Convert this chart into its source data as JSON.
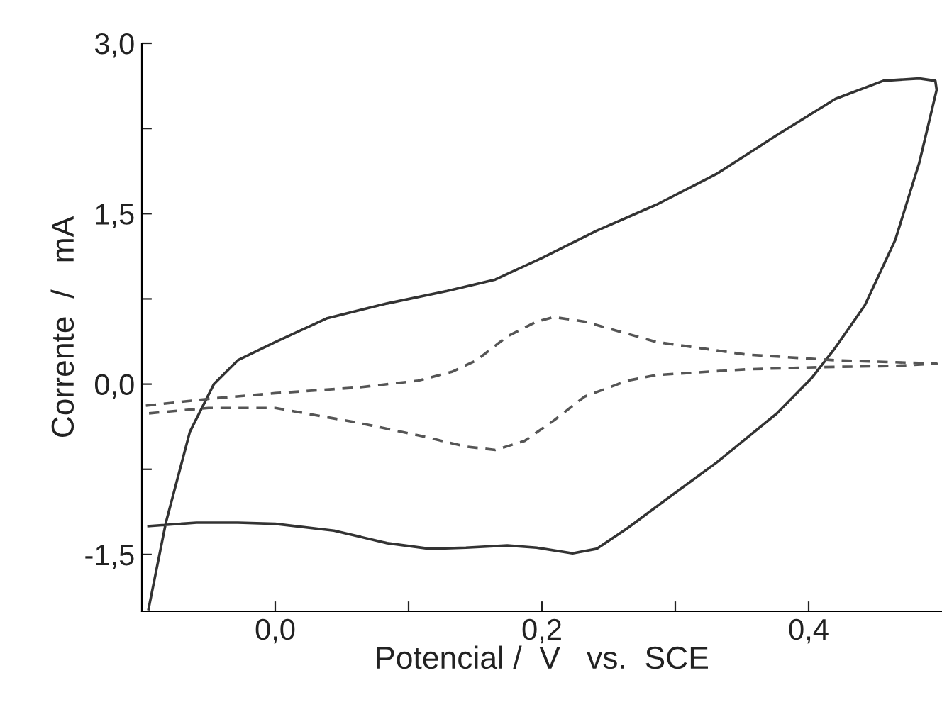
{
  "chart_data": {
    "type": "line",
    "xlabel": "Potencial /  V   vs.  SCE",
    "ylabel": "Corrente  /   mA",
    "xlim": [
      -0.1,
      0.5
    ],
    "ylim": [
      -2.0,
      3.0
    ],
    "xticks": [
      {
        "value": 0.0,
        "label": "0,0"
      },
      {
        "value": 0.1,
        "label": null
      },
      {
        "value": 0.2,
        "label": "0,2"
      },
      {
        "value": 0.3,
        "label": null
      },
      {
        "value": 0.4,
        "label": "0,4"
      }
    ],
    "yticks": [
      {
        "value": -1.5,
        "label": "-1,5"
      },
      {
        "value": -0.75,
        "label": null
      },
      {
        "value": 0.0,
        "label": "0,0"
      },
      {
        "value": 0.75,
        "label": null
      },
      {
        "value": 1.5,
        "label": "1,5"
      },
      {
        "value": 2.25,
        "label": null
      },
      {
        "value": 3.0,
        "label": "3,0"
      }
    ],
    "grid": false,
    "legend": false,
    "series": [
      {
        "color": "#333333",
        "line_style": "solid",
        "x": [
          -0.095,
          -0.082,
          -0.064,
          -0.046,
          -0.028,
          0,
          0.039,
          0.084,
          0.129,
          0.165,
          0.2,
          0.241,
          0.286,
          0.331,
          0.376,
          0.42,
          0.456,
          0.483,
          0.495,
          0.496,
          0.483,
          0.465,
          0.442,
          0.42,
          0.402,
          0.376,
          0.331,
          0.295,
          0.264,
          0.241,
          0.223,
          0.196,
          0.174,
          0.143,
          0.116,
          0.084,
          0.044,
          0,
          -0.028,
          -0.059,
          -0.095
        ],
        "values": [
          -1.98,
          -1.22,
          -0.42,
          0,
          0.21,
          0.37,
          0.58,
          0.71,
          0.82,
          0.92,
          1.11,
          1.35,
          1.58,
          1.85,
          2.19,
          2.51,
          2.67,
          2.69,
          2.67,
          2.59,
          1.95,
          1.27,
          0.69,
          0.32,
          0.05,
          -0.26,
          -0.69,
          -1.0,
          -1.27,
          -1.45,
          -1.49,
          -1.44,
          -1.42,
          -1.44,
          -1.45,
          -1.4,
          -1.29,
          -1.23,
          -1.22,
          -1.22,
          -1.25
        ]
      },
      {
        "color": "#555555",
        "line_style": "dashed",
        "x": [
          -0.097,
          -0.05,
          0,
          0.062,
          0.107,
          0.133,
          0.151,
          0.174,
          0.196,
          0.209,
          0.232,
          0.286,
          0.353,
          0.42,
          0.496,
          0.465,
          0.412,
          0.353,
          0.286,
          0.264,
          0.232,
          0.209,
          0.187,
          0.165,
          0.143,
          0.107,
          0.062,
          0,
          -0.05,
          -0.097
        ],
        "values": [
          -0.19,
          -0.13,
          -0.08,
          -0.03,
          0.03,
          0.11,
          0.21,
          0.42,
          0.55,
          0.59,
          0.55,
          0.37,
          0.26,
          0.21,
          0.18,
          0.16,
          0.15,
          0.13,
          0.08,
          0.03,
          -0.11,
          -0.32,
          -0.5,
          -0.58,
          -0.55,
          -0.45,
          -0.34,
          -0.21,
          -0.21,
          -0.26
        ]
      }
    ]
  }
}
